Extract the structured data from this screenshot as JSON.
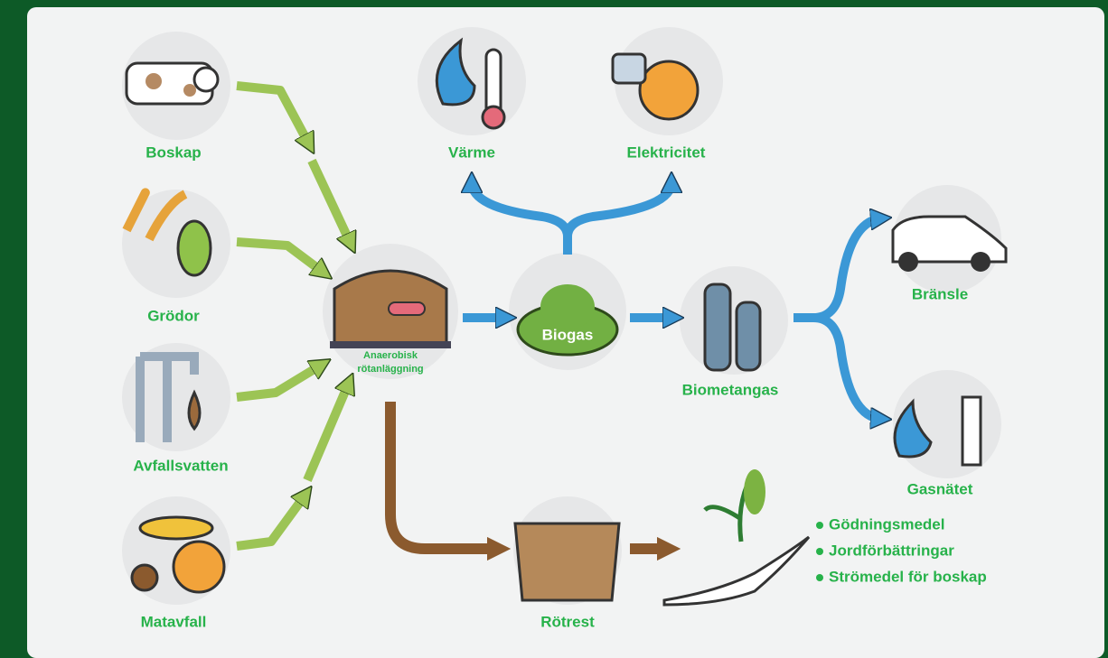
{
  "nodes": [
    {
      "label": "Boskap"
    },
    {
      "label": "Grödor"
    },
    {
      "label": "Avfallsvatten"
    },
    {
      "label": "Matavfall"
    },
    {
      "lines": [
        "Anaerobisk",
        "rötanläggning"
      ]
    },
    {
      "label": "Biogas"
    },
    {
      "label": "Värme"
    },
    {
      "label": "Elektricitet"
    },
    {
      "label": "Biometangas"
    },
    {
      "label": "Bränsle"
    },
    {
      "label": "Gasnätet"
    },
    {
      "label": "Rötrest"
    }
  ],
  "uses": [
    "Gödningsmedel",
    "Jordförbättringar",
    "Strömedel för boskap"
  ]
}
